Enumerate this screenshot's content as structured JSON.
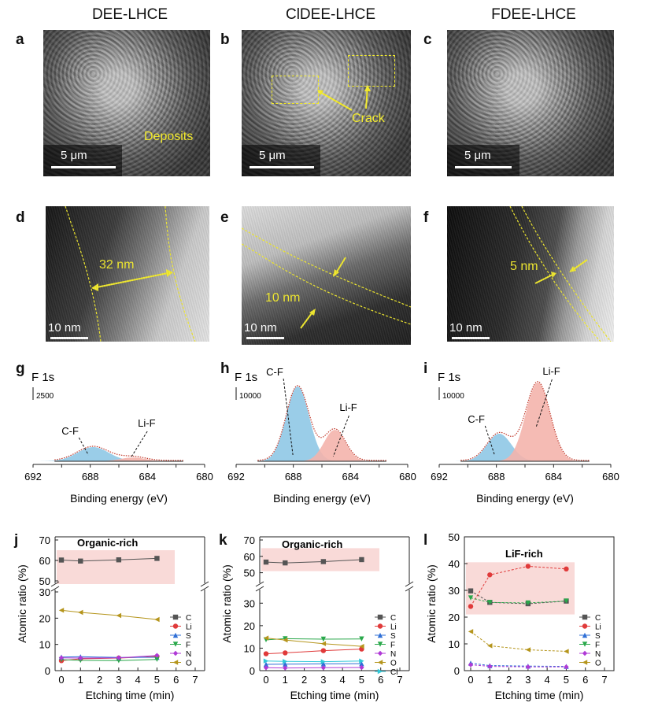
{
  "columns": [
    "DEE-LHCE",
    "ClDEE-LHCE",
    "FDEE-LHCE"
  ],
  "panels": {
    "a": "a",
    "b": "b",
    "c": "c",
    "d": "d",
    "e": "e",
    "f": "f",
    "g": "g",
    "h": "h",
    "i": "i",
    "j": "j",
    "k": "k",
    "l": "l"
  },
  "sem": {
    "scale": "5 μm",
    "deposits": "Deposits",
    "crack": "Crack"
  },
  "tem": {
    "scale": "10 nm",
    "d_thickness": "32 nm",
    "e_thickness": "10 nm",
    "f_thickness": "5 nm"
  },
  "xps": {
    "title": "F 1s",
    "xlabel": "Binding energy (eV)",
    "peak_cf": "C-F",
    "peak_lif": "Li-F",
    "scales": [
      "2500",
      "10000",
      "10000"
    ],
    "ticks": [
      "692",
      "688",
      "684",
      "680"
    ]
  },
  "depth": {
    "xlabel": "Etching time (min)",
    "ylabel": "Atomic ratio (%)",
    "j_annotation": "Organic-rich",
    "k_annotation": "Organic-rich",
    "l_annotation": "LiF-rich",
    "x_ticks": [
      "0",
      "1",
      "2",
      "3",
      "4",
      "5",
      "6",
      "7"
    ]
  },
  "colors": {
    "yellow": "#f2ea2b",
    "cf_fill": "#8fc8e6",
    "lif_fill": "#f4b4ac",
    "highlight": "#f9dad8"
  },
  "chart_data": [
    {
      "type": "line",
      "panel": "g",
      "title": "F 1s",
      "xlabel": "Binding energy (eV)",
      "xlim": [
        692,
        680
      ],
      "scale_bar": "2500",
      "peaks": [
        {
          "name": "C-F",
          "center": 687.8,
          "height": 0.45,
          "width": 1.1
        },
        {
          "name": "Li-F",
          "center": 685.0,
          "height": 0.12,
          "width": 0.9
        }
      ]
    },
    {
      "type": "line",
      "panel": "h",
      "title": "F 1s",
      "xlabel": "Binding energy (eV)",
      "xlim": [
        692,
        680
      ],
      "scale_bar": "10000",
      "peaks": [
        {
          "name": "C-F",
          "center": 687.7,
          "height": 1.0,
          "width": 0.8
        },
        {
          "name": "Li-F",
          "center": 685.1,
          "height": 0.42,
          "width": 0.75
        }
      ]
    },
    {
      "type": "line",
      "panel": "i",
      "title": "F 1s",
      "xlabel": "Binding energy (eV)",
      "xlim": [
        692,
        680
      ],
      "scale_bar": "10000",
      "peaks": [
        {
          "name": "C-F",
          "center": 687.8,
          "height": 0.35,
          "width": 0.85
        },
        {
          "name": "Li-F",
          "center": 685.1,
          "height": 1.0,
          "width": 0.85
        }
      ]
    },
    {
      "type": "line",
      "panel": "j",
      "xlabel": "Etching time (min)",
      "ylabel": "Atomic ratio (%)",
      "x": [
        0,
        1,
        3,
        5
      ],
      "annotation": "Organic-rich",
      "series": [
        {
          "name": "C",
          "color": "#555555",
          "values": [
            60.2,
            59.7,
            60.3,
            61.0
          ]
        },
        {
          "name": "Li",
          "color": "#e03a3a",
          "values": [
            3.8,
            4.5,
            4.8,
            5.4
          ]
        },
        {
          "name": "S",
          "color": "#2f6fd6",
          "values": [
            5.2,
            5.3,
            5.0,
            5.1
          ]
        },
        {
          "name": "F",
          "color": "#2aa84b",
          "values": [
            4.2,
            3.9,
            3.8,
            4.3
          ]
        },
        {
          "name": "N",
          "color": "#b03ad6",
          "values": [
            4.9,
            4.8,
            4.9,
            5.8
          ]
        },
        {
          "name": "O",
          "color": "#b5951c",
          "values": [
            23.0,
            22.2,
            21.0,
            19.5
          ]
        }
      ]
    },
    {
      "type": "line",
      "panel": "k",
      "xlabel": "Etching time (min)",
      "ylabel": "Atomic ratio (%)",
      "x": [
        0,
        1,
        3,
        5
      ],
      "annotation": "Organic-rich",
      "series": [
        {
          "name": "C",
          "color": "#555555",
          "values": [
            56.5,
            56.0,
            56.8,
            58.0
          ]
        },
        {
          "name": "Li",
          "color": "#e03a3a",
          "values": [
            7.5,
            7.9,
            8.9,
            9.6
          ]
        },
        {
          "name": "S",
          "color": "#2f6fd6",
          "values": [
            2.8,
            2.9,
            3.0,
            3.1
          ]
        },
        {
          "name": "F",
          "color": "#2aa84b",
          "values": [
            13.7,
            14.2,
            14.0,
            14.1
          ]
        },
        {
          "name": "N",
          "color": "#b03ad6",
          "values": [
            1.3,
            1.2,
            1.3,
            1.4
          ]
        },
        {
          "name": "O",
          "color": "#b5951c",
          "values": [
            14.5,
            13.6,
            12.0,
            10.8
          ]
        },
        {
          "name": "Cl",
          "color": "#2fc8d8",
          "values": [
            4.3,
            4.1,
            4.0,
            4.3
          ]
        }
      ]
    },
    {
      "type": "line",
      "panel": "l",
      "xlabel": "Etching time (min)",
      "ylabel": "Atomic ratio (%)",
      "x": [
        0,
        1,
        3,
        5
      ],
      "ylim": [
        0,
        50
      ],
      "annotation": "LiF-rich",
      "series": [
        {
          "name": "C",
          "color": "#555555",
          "values": [
            29.8,
            25.5,
            25.0,
            26.0
          ]
        },
        {
          "name": "Li",
          "color": "#e03a3a",
          "values": [
            24.0,
            35.8,
            39.0,
            38.0
          ]
        },
        {
          "name": "S",
          "color": "#2f6fd6",
          "values": [
            2.8,
            1.9,
            1.7,
            1.6
          ]
        },
        {
          "name": "F",
          "color": "#2aa84b",
          "values": [
            27.2,
            25.5,
            25.3,
            26.0
          ]
        },
        {
          "name": "N",
          "color": "#b03ad6",
          "values": [
            2.2,
            1.6,
            1.4,
            1.4
          ]
        },
        {
          "name": "O",
          "color": "#b5951c",
          "values": [
            14.6,
            9.3,
            7.8,
            7.2
          ]
        }
      ]
    }
  ]
}
